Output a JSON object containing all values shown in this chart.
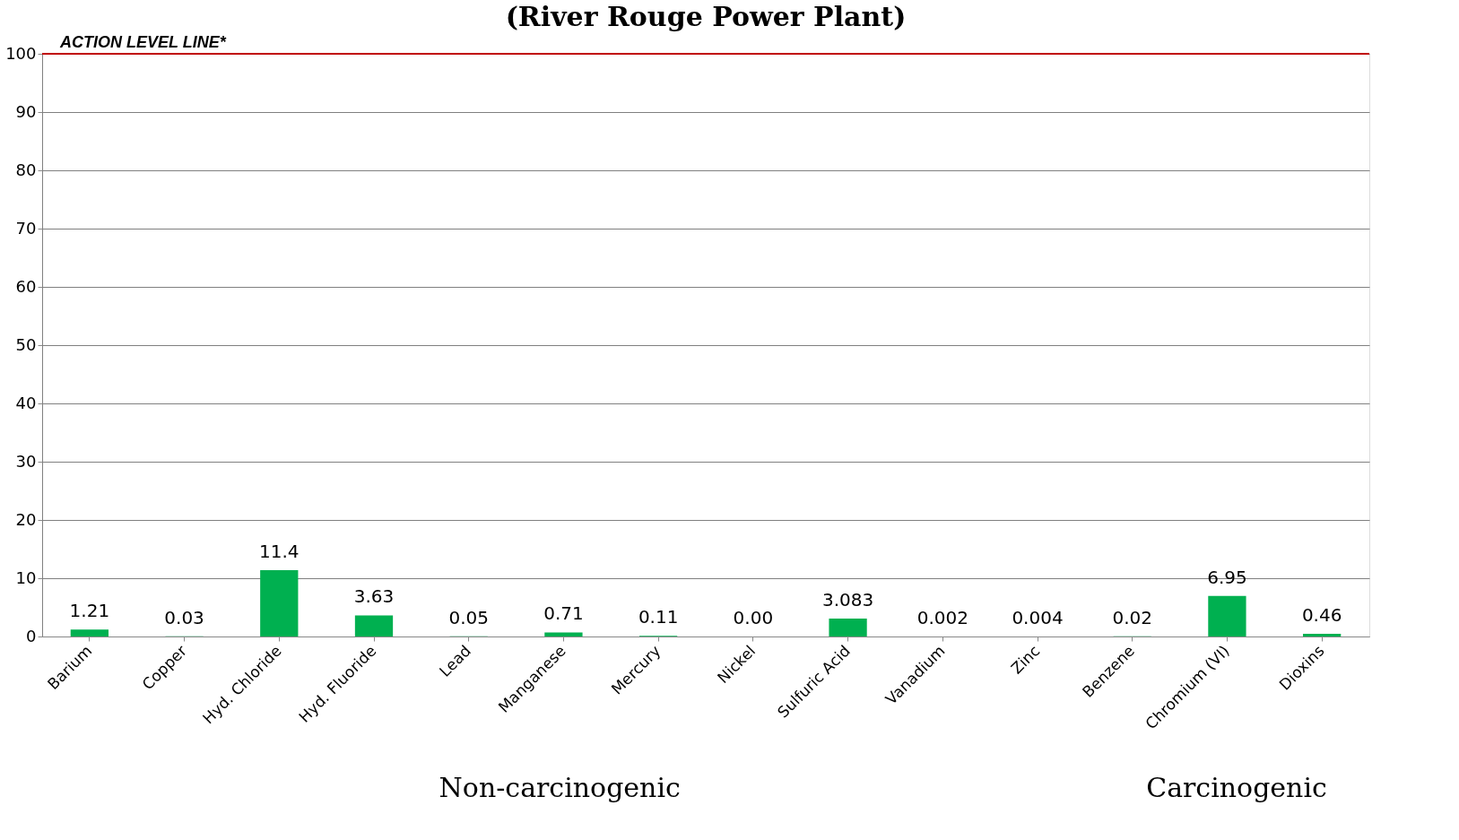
{
  "chart_data": {
    "type": "bar",
    "title": "(River Rouge Power Plant)",
    "categories": [
      "Barium",
      "Copper",
      "Hyd. Chloride",
      "Hyd. Fluoride",
      "Lead",
      "Manganese",
      "Mercury",
      "Nickel",
      "Sulfuric Acid",
      "Vanadium",
      "Zinc",
      "Benzene",
      "Chromium (VI)",
      "Dioxins"
    ],
    "values": [
      1.21,
      0.03,
      11.4,
      3.63,
      0.05,
      0.71,
      0.11,
      0.0,
      3.083,
      0.002,
      0.004,
      0.02,
      6.95,
      0.46
    ],
    "value_labels": [
      "1.21",
      "0.03",
      "11.4",
      "3.63",
      "0.05",
      "0.71",
      "0.11",
      "0.00",
      "3.083",
      "0.002",
      "0.004",
      "0.02",
      "6.95",
      "0.46"
    ],
    "color": "#00b050",
    "ylim": [
      0,
      100
    ],
    "yticks": [
      0,
      10,
      20,
      30,
      40,
      50,
      60,
      70,
      80,
      90,
      100
    ],
    "grid": "y",
    "ref_lines": [
      {
        "axis": "y",
        "value": 100,
        "label": "ACTION LEVEL LINE*",
        "color": "#c00000"
      }
    ],
    "annotations": [
      "Non-carcinogenic",
      "Carcinogenic"
    ]
  }
}
